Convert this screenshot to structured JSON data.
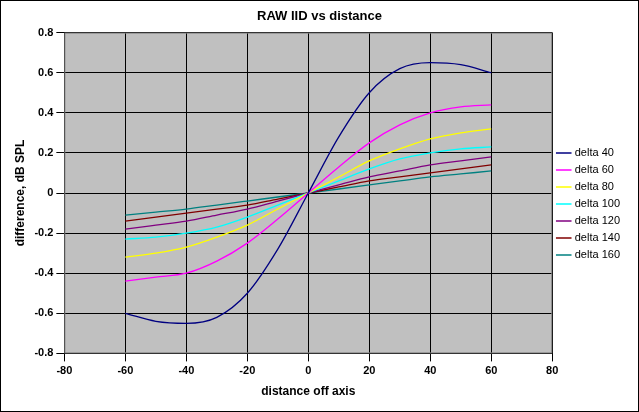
{
  "chart_data": {
    "type": "line",
    "title": "RAW IID vs distance",
    "x_label": "distance off axis",
    "y_label": "difference, dB SPL",
    "x": [
      -60,
      -50,
      -40,
      -30,
      -20,
      -10,
      0,
      10,
      20,
      30,
      40,
      50,
      60
    ],
    "series": [
      {
        "name": "delta 40",
        "color": "#000080",
        "values": [
          -0.6,
          -0.64,
          -0.65,
          -0.62,
          -0.5,
          -0.28,
          0,
          0.28,
          0.5,
          0.62,
          0.65,
          0.64,
          0.6
        ]
      },
      {
        "name": "delta 60",
        "color": "#ff00ff",
        "values": [
          -0.44,
          -0.42,
          -0.4,
          -0.34,
          -0.25,
          -0.13,
          0,
          0.13,
          0.25,
          0.34,
          0.4,
          0.43,
          0.44
        ]
      },
      {
        "name": "delta 80",
        "color": "#ffff00",
        "values": [
          -0.32,
          -0.3,
          -0.27,
          -0.22,
          -0.16,
          -0.08,
          0,
          0.08,
          0.16,
          0.22,
          0.27,
          0.3,
          0.32
        ]
      },
      {
        "name": "delta 100",
        "color": "#00ffff",
        "values": [
          -0.23,
          -0.22,
          -0.2,
          -0.17,
          -0.12,
          -0.06,
          0,
          0.06,
          0.12,
          0.17,
          0.2,
          0.22,
          0.23
        ]
      },
      {
        "name": "delta 120",
        "color": "#800080",
        "values": [
          -0.18,
          -0.16,
          -0.14,
          -0.11,
          -0.08,
          -0.04,
          0,
          0.04,
          0.08,
          0.11,
          0.14,
          0.16,
          0.18
        ]
      },
      {
        "name": "delta 140",
        "color": "#800000",
        "values": [
          -0.14,
          -0.12,
          -0.1,
          -0.08,
          -0.06,
          -0.03,
          0,
          0.03,
          0.06,
          0.08,
          0.1,
          0.12,
          0.14
        ]
      },
      {
        "name": "delta 160",
        "color": "#008080",
        "values": [
          -0.11,
          -0.095,
          -0.08,
          -0.06,
          -0.04,
          -0.02,
          0,
          0.02,
          0.04,
          0.06,
          0.08,
          0.095,
          0.11
        ]
      }
    ],
    "xlim": [
      -80,
      80
    ],
    "xticks": [
      -80,
      -60,
      -40,
      -20,
      0,
      20,
      40,
      60,
      80
    ],
    "ylim": [
      -0.8,
      0.8
    ],
    "yticks": [
      -0.8,
      -0.6,
      -0.4,
      -0.2,
      0,
      0.2,
      0.4,
      0.6,
      0.8
    ],
    "grid": true,
    "legend": "right",
    "marker": "none",
    "line_style": "solid"
  }
}
